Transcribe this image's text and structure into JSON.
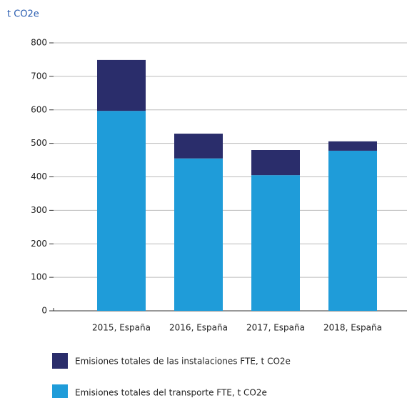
{
  "chart_data": {
    "type": "stacked_bar",
    "y_axis_label": "t CO2e",
    "categories": [
      "2015, España",
      "2016, España",
      "2017, España",
      "2018, España"
    ],
    "series": [
      {
        "name": "Emisiones totales de las instalaciones FTE, t CO2e",
        "color": "#2a2d6b",
        "values": [
          152,
          74,
          75,
          28
        ]
      },
      {
        "name": "Emisiones totales del transporte FTE, t CO2e",
        "color": "#1f9cd9",
        "values": [
          597,
          455,
          405,
          478
        ]
      }
    ],
    "ylim": [
      0,
      800
    ],
    "yticks": [
      0,
      100,
      200,
      300,
      400,
      500,
      600,
      700,
      800
    ],
    "grid": true
  }
}
